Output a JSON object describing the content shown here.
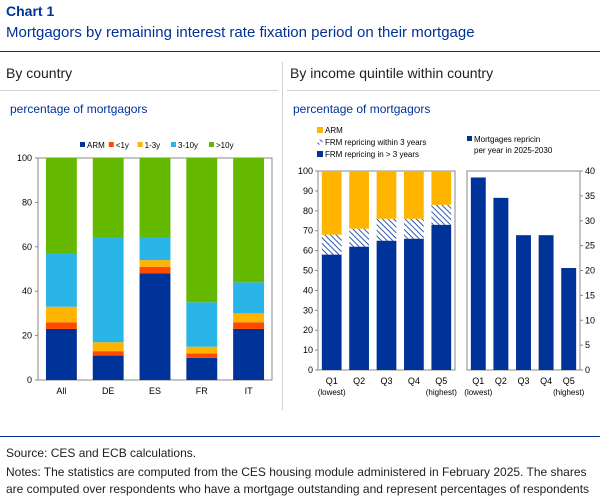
{
  "header": {
    "chart_label": "Chart 1",
    "title": "Mortgagors by remaining interest rate fixation period on their mortgage"
  },
  "panels": {
    "left_title": "By country",
    "right_title": "By income quintile within country"
  },
  "colors": {
    "arm": "#003399",
    "lt1y": "#ff4b00",
    "y1_3": "#ffb400",
    "y3_10": "#2ab5e8",
    "gt10y": "#65b800",
    "frm_gt3": "#003399",
    "frm_within3": "#ffffff",
    "arm_right": "#ffb400",
    "repricing": "#003399"
  },
  "chart_data": [
    {
      "type": "bar",
      "stacked": true,
      "unit_label": "percentage of mortgagors",
      "categories": [
        "All",
        "DE",
        "ES",
        "FR",
        "IT"
      ],
      "series": [
        {
          "name": "ARM",
          "values": [
            23,
            11,
            48,
            10,
            23
          ]
        },
        {
          "name": "<1y",
          "values": [
            3,
            2,
            3,
            2,
            3
          ]
        },
        {
          "name": "1-3y",
          "values": [
            7,
            4,
            3,
            3,
            4
          ]
        },
        {
          "name": "3-10y",
          "values": [
            24,
            47,
            10,
            20,
            14
          ]
        },
        {
          "name": ">10y",
          "values": [
            43,
            36,
            36,
            65,
            56
          ]
        }
      ],
      "ylim": [
        0,
        100
      ],
      "yticks": [
        0,
        20,
        40,
        60,
        80,
        100
      ],
      "legend": "top"
    },
    {
      "type": "bar",
      "stacked": true,
      "unit_label": "percentage of mortgagors",
      "categories": [
        "Q1",
        "Q2",
        "Q3",
        "Q4",
        "Q5"
      ],
      "category_notes": [
        "(lowest)",
        "",
        "",
        "",
        "(highest)"
      ],
      "series": [
        {
          "name": "FRM repricing in > 3 years",
          "values": [
            58,
            62,
            65,
            66,
            73
          ]
        },
        {
          "name": "FRM repricing within 3 years",
          "values": [
            10,
            9,
            11,
            10,
            10
          ]
        },
        {
          "name": "ARM",
          "values": [
            32,
            29,
            24,
            24,
            17
          ]
        }
      ],
      "ylim": [
        0,
        100
      ],
      "yticks": [
        0,
        10,
        20,
        30,
        40,
        50,
        60,
        70,
        80,
        90,
        100
      ],
      "legend": "top-left"
    },
    {
      "type": "bar",
      "categories": [
        "Q1",
        "Q2",
        "Q3",
        "Q4",
        "Q5"
      ],
      "category_notes": [
        "(lowest)",
        "",
        "",
        "",
        "(highest)"
      ],
      "series": [
        {
          "name": "Mortgages repricing per year in 2025-2030",
          "values": [
            38.7,
            34.6,
            27.1,
            27.1,
            20.5
          ]
        }
      ],
      "ylim": [
        0,
        40
      ],
      "yticks": [
        0,
        5,
        10,
        15,
        20,
        25,
        30,
        35,
        40
      ],
      "axis": "right",
      "legend": "top"
    }
  ],
  "footer": {
    "source": "Source: CES and ECB calculations.",
    "notes": "Notes: The statistics are computed from the CES housing module administered in February 2025. The shares are computed over respondents who have a mortgage outstanding and represent percentages of respondents"
  }
}
